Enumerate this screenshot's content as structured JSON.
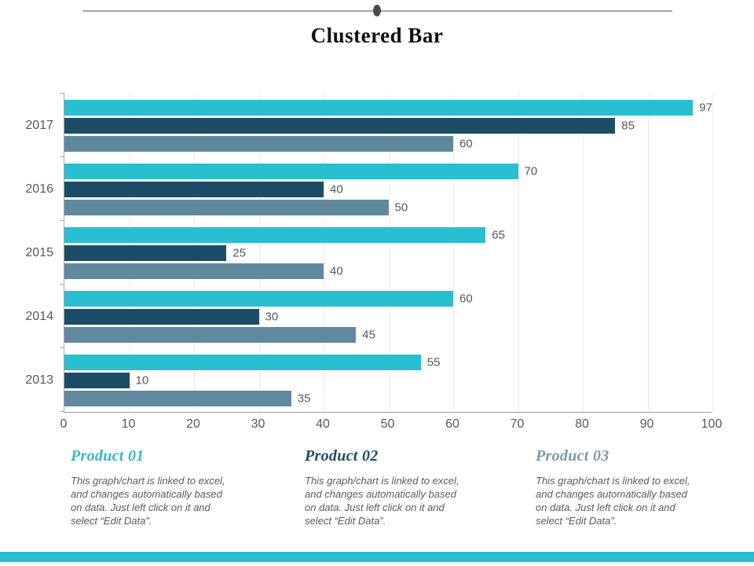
{
  "slide": {
    "title": "Clustered Bar"
  },
  "chart_data": {
    "type": "bar",
    "orientation": "horizontal",
    "title": "Clustered Bar",
    "categories": [
      "2017",
      "2016",
      "2015",
      "2014",
      "2013"
    ],
    "series": [
      {
        "name": "Product 01",
        "color": "#29bed2",
        "values": [
          97,
          70,
          65,
          60,
          55
        ]
      },
      {
        "name": "Product 02",
        "color": "#1c4d66",
        "values": [
          85,
          40,
          25,
          30,
          10
        ]
      },
      {
        "name": "Product 03",
        "color": "#6089a0",
        "values": [
          60,
          50,
          40,
          45,
          35
        ]
      }
    ],
    "xlim": [
      0,
      100
    ],
    "xticks": [
      0,
      10,
      20,
      30,
      40,
      50,
      60,
      70,
      80,
      90,
      100
    ],
    "grid": true,
    "value_labels": true,
    "legend_position": "bottom"
  },
  "legend": {
    "items": [
      {
        "title": "Product 01",
        "color": "#3ab6c6",
        "description": "This graph/chart is linked to excel, and changes automatically based on data. Just left click on it and select “Edit Data”."
      },
      {
        "title": "Product 02",
        "color": "#1d4e66",
        "description": "This graph/chart is linked to excel, and changes automatically based on data. Just left click on it and select “Edit Data”."
      },
      {
        "title": "Product 03",
        "color": "#7c99ab",
        "description": "This graph/chart is linked to excel, and changes automatically based on data. Just left click on it and select “Edit Data”."
      }
    ]
  },
  "footer": {
    "accent_color": "#29bed2"
  }
}
